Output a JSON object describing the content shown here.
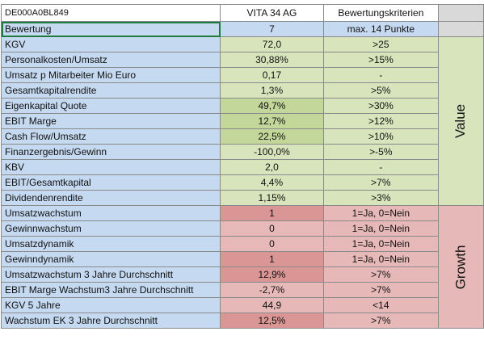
{
  "header": {
    "isin": "DE000A0BL849",
    "company": "VITA 34 AG",
    "criteria_label": "Bewertungskriterien"
  },
  "bewertung": {
    "label": "Bewertung",
    "value": "7",
    "criterion": "max. 14 Punkte"
  },
  "groups": {
    "value": "Value",
    "growth": "Growth"
  },
  "value_rows": [
    {
      "label": "KGV",
      "value": "72,0",
      "criterion": ">25",
      "value_color": "#d8e4bc"
    },
    {
      "label": "Personalkosten/Umsatz",
      "value": "30,88%",
      "criterion": ">15%",
      "value_color": "#d8e4bc"
    },
    {
      "label": "Umsatz p Mitarbeiter Mio Euro",
      "value": "0,17",
      "criterion": "-",
      "value_color": "#d8e4bc"
    },
    {
      "label": "Gesamtkapitalrendite",
      "value": "1,3%",
      "criterion": ">5%",
      "value_color": "#d8e4bc"
    },
    {
      "label": "Eigenkapital Quote",
      "value": "49,7%",
      "criterion": ">30%",
      "value_color": "#c4d79b"
    },
    {
      "label": "EBIT Marge",
      "value": "12,7%",
      "criterion": ">12%",
      "value_color": "#c4d79b"
    },
    {
      "label": "Cash Flow/Umsatz",
      "value": "22,5%",
      "criterion": ">10%",
      "value_color": "#c4d79b"
    },
    {
      "label": "Finanzergebnis/Gewinn",
      "value": "-100,0%",
      "criterion": ">-5%",
      "value_color": "#d8e4bc"
    },
    {
      "label": "KBV",
      "value": "2,0",
      "criterion": "-",
      "value_color": "#d8e4bc"
    },
    {
      "label": "EBIT/Gesamtkapital",
      "value": "4,4%",
      "criterion": ">7%",
      "value_color": "#d8e4bc"
    },
    {
      "label": "Dividendenrendite",
      "value": "1,15%",
      "criterion": ">3%",
      "value_color": "#d8e4bc"
    }
  ],
  "growth_rows": [
    {
      "label": "Umsatzwachstum",
      "value": "1",
      "criterion": "1=Ja, 0=Nein",
      "value_color": "#da9694"
    },
    {
      "label": "Gewinnwachstum",
      "value": "0",
      "criterion": "1=Ja, 0=Nein",
      "value_color": "#e6b8b7"
    },
    {
      "label": "Umsatzdynamik",
      "value": "0",
      "criterion": "1=Ja, 0=Nein",
      "value_color": "#e6b8b7"
    },
    {
      "label": "Gewinndynamik",
      "value": "1",
      "criterion": "1=Ja, 0=Nein",
      "value_color": "#da9694"
    },
    {
      "label": "Umsatzwachstum 3 Jahre Durchschnitt",
      "value": "12,9%",
      "criterion": ">7%",
      "value_color": "#da9694"
    },
    {
      "label": "EBIT Marge Wachstum3 Jahre Durchschnitt",
      "value": "-2,7%",
      "criterion": ">7%",
      "value_color": "#e6b8b7"
    },
    {
      "label": "KGV 5 Jahre",
      "value": "44,9",
      "criterion": "<14",
      "value_color": "#e6b8b7"
    },
    {
      "label": "Wachstum EK 3 Jahre Durchschnitt",
      "value": "12,5%",
      "criterion": ">7%",
      "value_color": "#da9694"
    }
  ],
  "colors": {
    "label_bg": "#c5d9f1",
    "header_bg": "#ffffff",
    "value_criteria_bg": "#d8e4bc",
    "growth_criteria_bg": "#e6b8b7",
    "side_empty_bg": "#d9d9d9",
    "selection_border": "#1e7b3d"
  }
}
